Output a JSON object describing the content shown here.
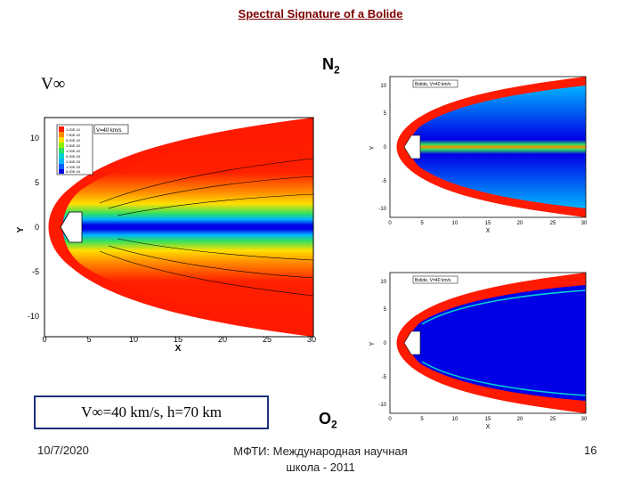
{
  "slide": {
    "title": "Spectral Signature of a Bolide",
    "velocity_symbol": "V∞",
    "condition_text": "V∞=40 km/s,   h=70 km",
    "species": {
      "n2_base": "N",
      "n2_sub": "2",
      "o2_base": "O",
      "o2_sub": "2"
    },
    "footer": {
      "date": "10/7/2020",
      "institution_line1": "МФТИ: Международная научная",
      "institution_line2": "школа - 2011",
      "page_number": "16"
    }
  },
  "plots": {
    "main": {
      "x_label": "X",
      "y_label": "Y",
      "x_ticks": [
        "0",
        "5",
        "10",
        "15",
        "20",
        "25",
        "30"
      ],
      "y_ticks": [
        "10",
        "5",
        "0",
        "-5",
        "-10"
      ],
      "box_label": "V=40 km/s",
      "legend_values": [
        "1.00E-01",
        "7.50E-02",
        "5.00E-02",
        "2.50E-02",
        "1.00E-02",
        "5.00E-03",
        "2.50E-03",
        "1.00E-03",
        "5.00E-04"
      ]
    },
    "n2": {
      "x_label": "X",
      "y_label": "Y",
      "x_ticks": [
        "0",
        "5",
        "10",
        "15",
        "20",
        "25",
        "30"
      ],
      "y_ticks": [
        "10",
        "5",
        "0",
        "-5",
        "-10"
      ],
      "box_label": "Bolide, V=40 km/s"
    },
    "o2": {
      "x_label": "X",
      "y_label": "Y",
      "x_ticks": [
        "0",
        "5",
        "10",
        "15",
        "20",
        "25",
        "30"
      ],
      "y_ticks": [
        "10",
        "5",
        "0",
        "-5",
        "-10"
      ],
      "box_label": "Bolide, V=40 km/s"
    }
  },
  "colors": {
    "title": "#7a0000",
    "frame": "#1f2f7a",
    "field_red": "#ff1a00",
    "field_blue": "#0000e6"
  }
}
